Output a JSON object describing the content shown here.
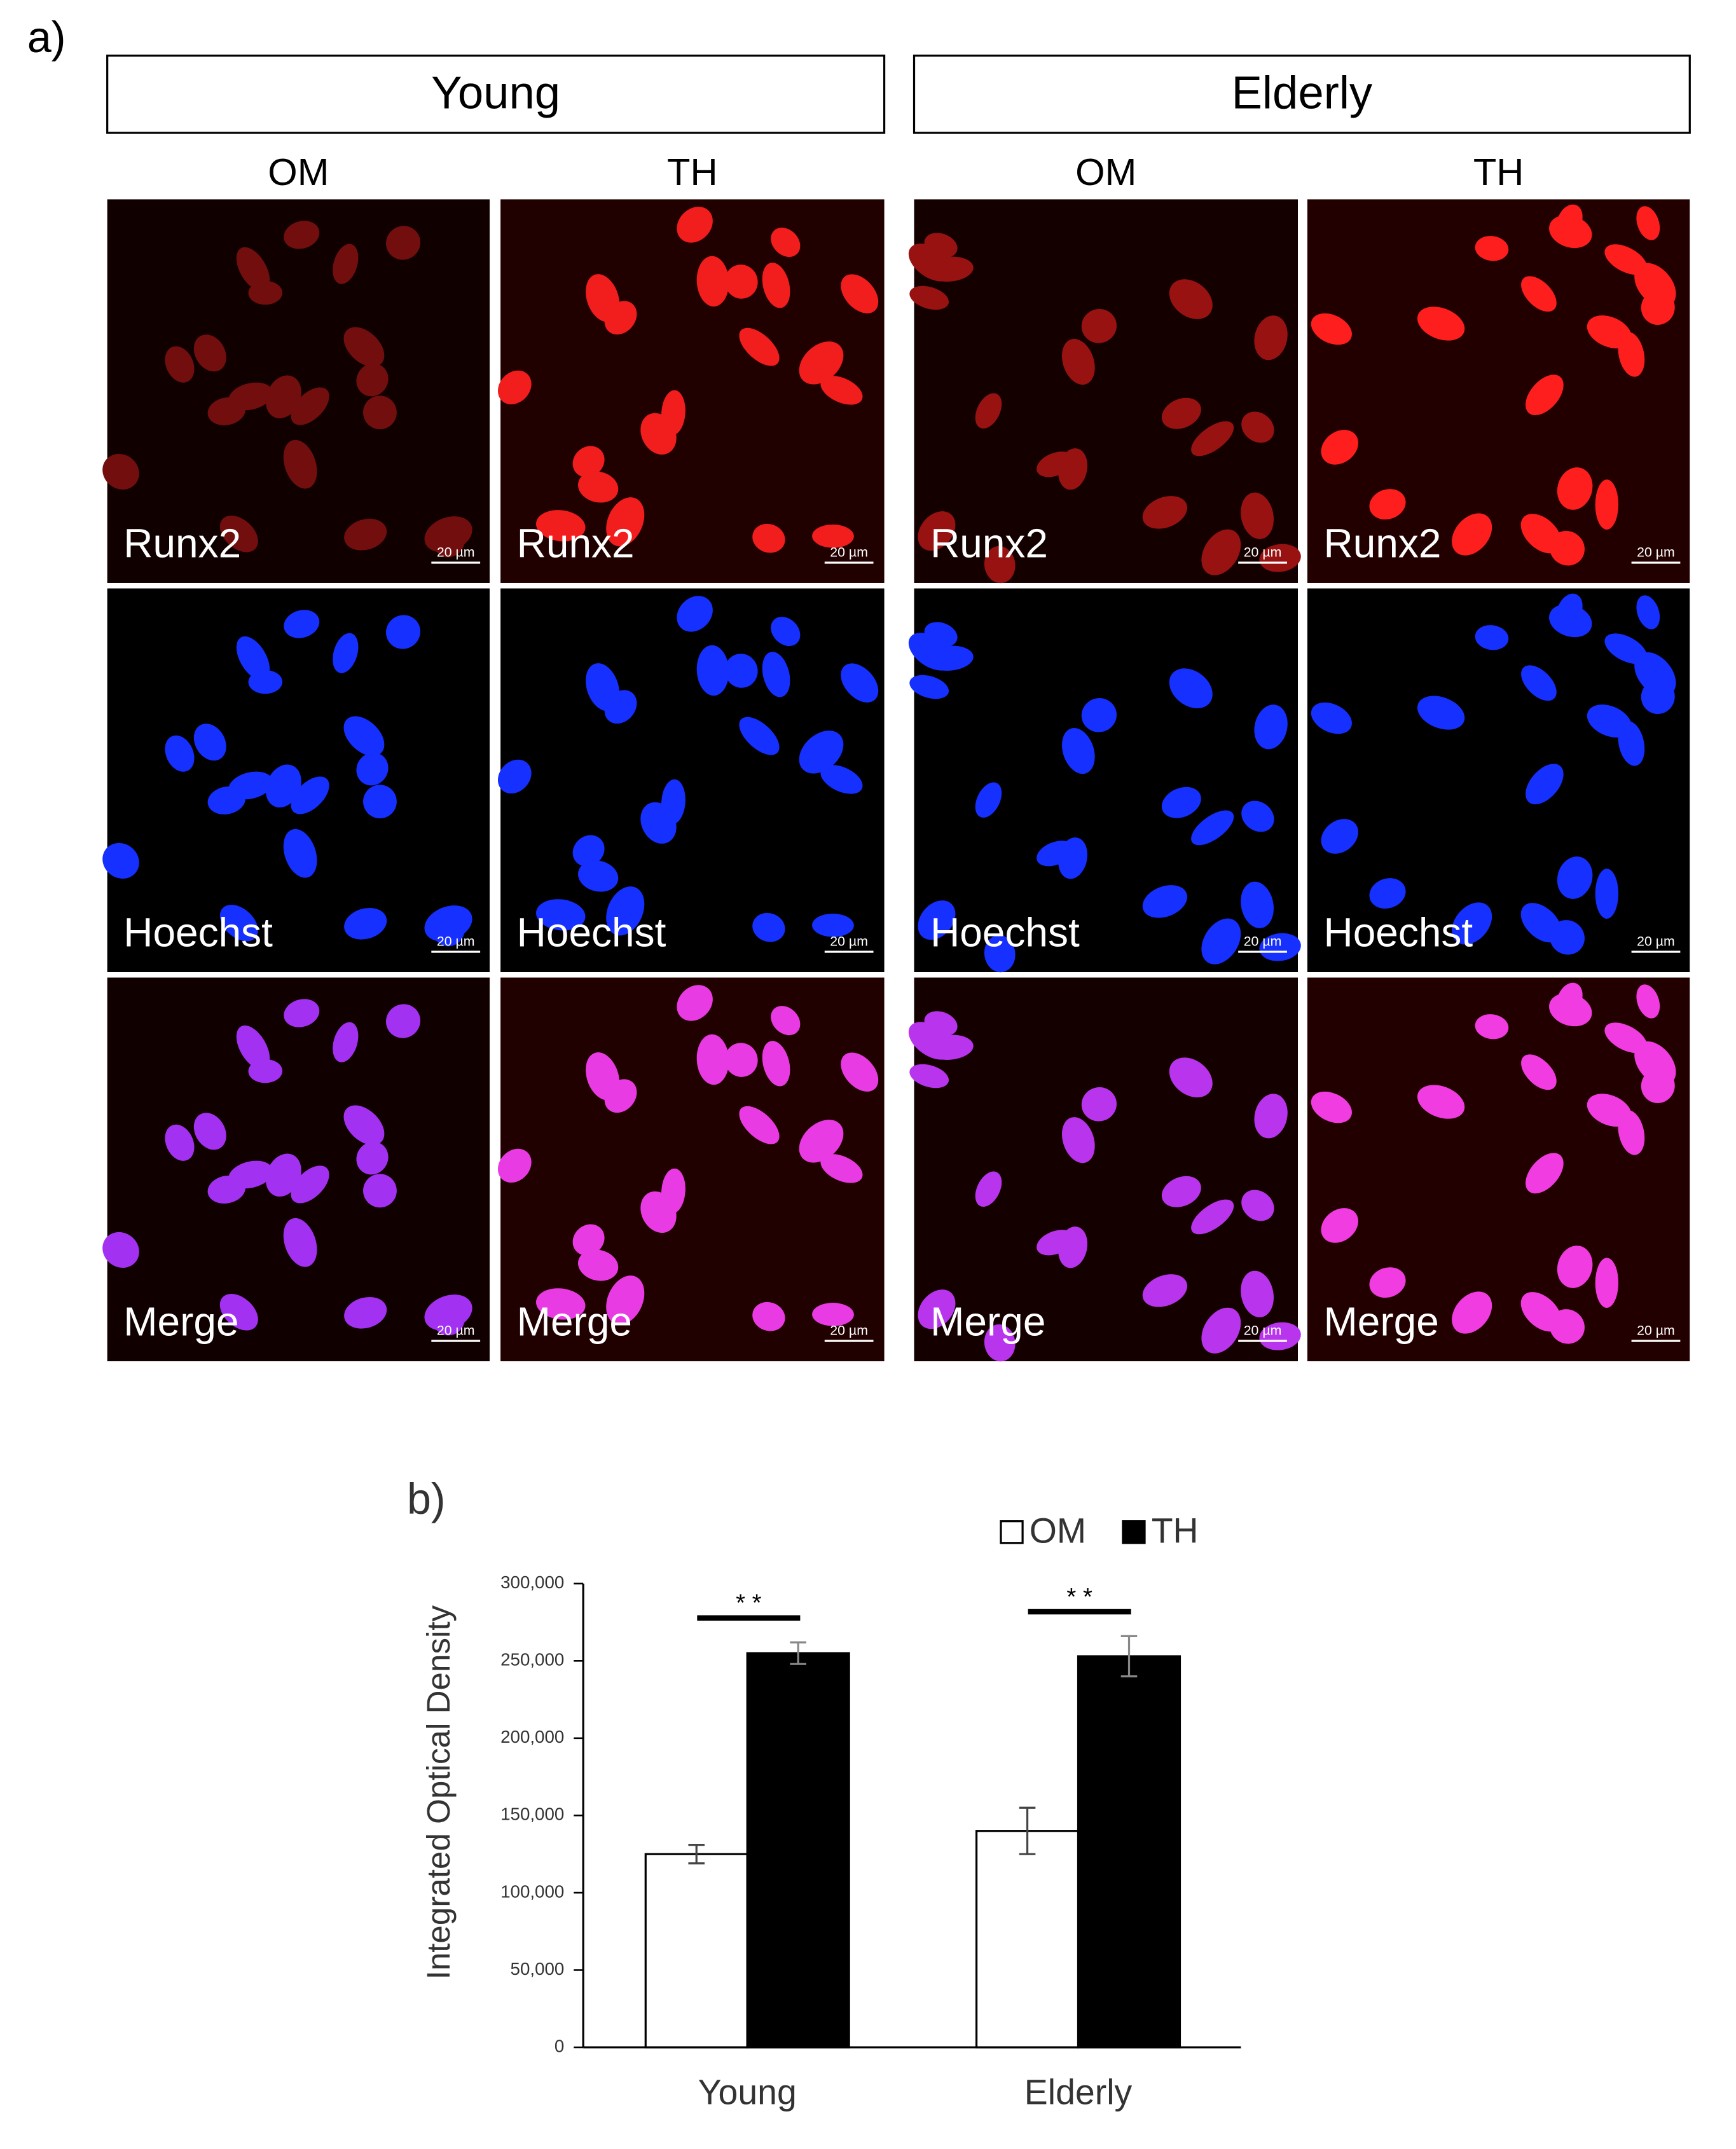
{
  "panel_a": {
    "label": "a)",
    "groups": [
      {
        "name": "Young",
        "columns": [
          "OM",
          "TH"
        ]
      },
      {
        "name": "Elderly",
        "columns": [
          "OM",
          "TH"
        ]
      }
    ],
    "rows": [
      "Runx2",
      "Hoechst",
      "Merge"
    ],
    "scale_bar": "20 µm"
  },
  "chart_data": {
    "type": "bar",
    "panel_label": "b)",
    "y_label": "Integrated Optical Density",
    "categories": [
      "Young",
      "Elderly"
    ],
    "series": [
      {
        "name": "OM",
        "color": "#ffffff",
        "values": [
          125000,
          140000
        ],
        "errors": [
          6000,
          15000
        ]
      },
      {
        "name": "TH",
        "color": "#000000",
        "values": [
          255000,
          253000
        ],
        "errors": [
          7000,
          13000
        ]
      }
    ],
    "ylim": [
      0,
      300000
    ],
    "yticks": [
      0,
      {
        "value": 50000,
        "label": "50,000"
      },
      {
        "value": 100000,
        "label": "100,000"
      },
      {
        "value": 150000,
        "label": "150,000"
      },
      {
        "value": 200000,
        "label": "200,000"
      },
      {
        "value": 250000,
        "label": "250,000"
      },
      {
        "value": 300000,
        "label": "300,000"
      }
    ],
    "annotations": [
      "* *",
      "* *"
    ],
    "legend": "top"
  }
}
